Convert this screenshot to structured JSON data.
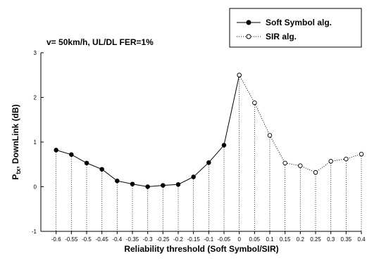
{
  "chart_data": {
    "type": "line",
    "xlabel": "Reliability threshold (Soft Symbol/SIR)",
    "ylabel_main": "P",
    "ylabel_sub": "tx",
    "ylabel_rest": ", DownLink (dB)",
    "annotation": "v= 50km/h, UL/DL FER=1%",
    "xlim": [
      -0.65,
      0.4
    ],
    "ylim": [
      -1,
      3
    ],
    "x_ticks": [
      "-0.6",
      "-0.55",
      "-0.5",
      "-0.45",
      "-0.4",
      "-0.35",
      "-0.3",
      "-0.25",
      "-0.2",
      "-0.15",
      "-0.1",
      "-0.05",
      "0",
      "0.05",
      "0.1",
      "0.15",
      "0.2",
      "0.25",
      "0.3",
      "0.35",
      "0.4"
    ],
    "y_ticks": [
      "-1",
      "0",
      "1",
      "2",
      "3"
    ],
    "grid": false,
    "drop_lines": true,
    "legend_position": "top-right",
    "series": [
      {
        "name": "Soft Symbol alg.",
        "marker": "filled-circle",
        "line_style": "solid",
        "x": [
          -0.6,
          -0.55,
          -0.5,
          -0.45,
          -0.4,
          -0.35,
          -0.3,
          -0.25,
          -0.2,
          -0.15,
          -0.1,
          -0.05,
          0.0
        ],
        "y": [
          0.82,
          0.72,
          0.53,
          0.39,
          0.13,
          0.06,
          0.0,
          0.03,
          0.05,
          0.22,
          0.54,
          0.93,
          2.5
        ]
      },
      {
        "name": "SIR alg.",
        "marker": "open-circle",
        "line_style": "dotted",
        "x": [
          0.0,
          0.05,
          0.1,
          0.15,
          0.2,
          0.25,
          0.3,
          0.35,
          0.4
        ],
        "y": [
          2.5,
          1.88,
          1.15,
          0.53,
          0.47,
          0.32,
          0.57,
          0.62,
          0.73
        ]
      }
    ],
    "colors": {
      "axis": "#000000",
      "line": "#000000",
      "marker_fill": "#000000",
      "open_marker_fill": "#ffffff"
    }
  }
}
